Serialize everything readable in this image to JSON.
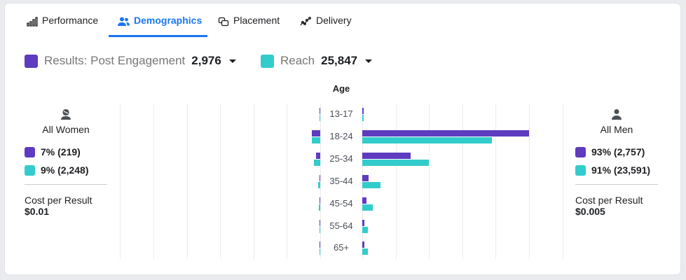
{
  "tabs": [
    {
      "label": "Performance",
      "icon": "bar-chart-icon",
      "active": false
    },
    {
      "label": "Demographics",
      "icon": "people-icon",
      "active": true
    },
    {
      "label": "Placement",
      "icon": "placement-icon",
      "active": false
    },
    {
      "label": "Delivery",
      "icon": "delivery-icon",
      "active": false
    }
  ],
  "legend": {
    "results": {
      "label": "Results: Post Engagement",
      "value": "2,976",
      "color": "#5e3bbf"
    },
    "reach": {
      "label": "Reach",
      "value": "25,847",
      "color": "#33cccc"
    }
  },
  "chart_data": {
    "type": "bar",
    "title": "Age",
    "categories": [
      "13-17",
      "18-24",
      "25-34",
      "35-44",
      "45-54",
      "55-64",
      "65+"
    ],
    "series": [
      {
        "name": "Results: Post Engagement - All Women",
        "side": "left",
        "color": "#5e3bbf",
        "values": [
          0.3,
          3.3,
          1.7,
          0.3,
          0.3,
          0.3,
          0.3
        ]
      },
      {
        "name": "Reach - All Women",
        "side": "left",
        "color": "#33cccc",
        "values": [
          0.3,
          3.3,
          2.5,
          0.8,
          0.6,
          0.3,
          0.3
        ]
      },
      {
        "name": "Results: Post Engagement - All Men",
        "side": "right",
        "color": "#5e3bbf",
        "values": [
          0.3,
          66,
          19.2,
          2.5,
          1.7,
          0.8,
          0.8
        ]
      },
      {
        "name": "Reach - All Men",
        "side": "right",
        "color": "#33cccc",
        "values": [
          0.4,
          51.4,
          26.4,
          7.2,
          4.2,
          2.2,
          2.2
        ]
      }
    ],
    "unit": "%",
    "grid": true
  },
  "women": {
    "title": "All Women",
    "icon": "woman-icon",
    "results": "7% (219)",
    "reach": "9% (2,248)",
    "cost_label": "Cost per Result",
    "cost": "$0.01"
  },
  "men": {
    "title": "All Men",
    "icon": "man-icon",
    "results": "93% (2,757)",
    "reach": "91% (23,591)",
    "cost_label": "Cost per Result",
    "cost": "$0.005"
  }
}
